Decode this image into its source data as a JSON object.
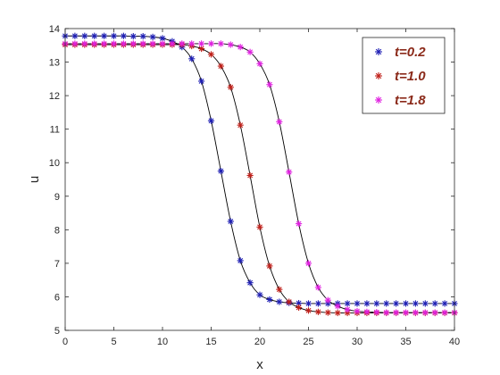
{
  "chart_data": {
    "type": "scatter",
    "title": "",
    "xlabel": "x",
    "ylabel": "u",
    "xlim": [
      0,
      40
    ],
    "ylim": [
      5,
      14
    ],
    "xticks": [
      "0",
      "5",
      "10",
      "15",
      "20",
      "25",
      "30",
      "35",
      "40"
    ],
    "yticks": [
      "5",
      "6",
      "7",
      "8",
      "9",
      "10",
      "11",
      "12",
      "13",
      "14"
    ],
    "grid": false,
    "legend_position": "top-right",
    "marker": "asterisk",
    "fit_line_color": "#000000",
    "series": [
      {
        "name": "t=0.2",
        "color": "#1f1fb4",
        "points": [
          [
            0,
            13.78
          ],
          [
            1,
            13.78
          ],
          [
            2,
            13.78
          ],
          [
            3,
            13.78
          ],
          [
            4,
            13.78
          ],
          [
            5,
            13.78
          ],
          [
            6,
            13.78
          ],
          [
            7,
            13.77
          ],
          [
            8,
            13.77
          ],
          [
            9,
            13.75
          ],
          [
            10,
            13.71
          ],
          [
            11,
            13.62
          ],
          [
            12,
            13.45
          ],
          [
            13,
            13.1
          ],
          [
            14,
            12.43
          ],
          [
            15,
            11.25
          ],
          [
            16,
            9.75
          ],
          [
            17,
            8.25
          ],
          [
            18,
            7.08
          ],
          [
            19,
            6.42
          ],
          [
            20,
            6.06
          ],
          [
            21,
            5.92
          ],
          [
            22,
            5.85
          ],
          [
            23,
            5.82
          ],
          [
            24,
            5.81
          ],
          [
            25,
            5.8
          ],
          [
            26,
            5.8
          ],
          [
            27,
            5.8
          ],
          [
            28,
            5.8
          ],
          [
            29,
            5.8
          ],
          [
            30,
            5.8
          ],
          [
            31,
            5.8
          ],
          [
            32,
            5.8
          ],
          [
            33,
            5.8
          ],
          [
            34,
            5.8
          ],
          [
            35,
            5.8
          ],
          [
            36,
            5.8
          ],
          [
            37,
            5.8
          ],
          [
            38,
            5.8
          ],
          [
            39,
            5.8
          ],
          [
            40,
            5.8
          ]
        ]
      },
      {
        "name": "t=1.0",
        "color": "#c0201a",
        "points": [
          [
            0,
            13.52
          ],
          [
            1,
            13.52
          ],
          [
            2,
            13.52
          ],
          [
            3,
            13.52
          ],
          [
            4,
            13.52
          ],
          [
            5,
            13.52
          ],
          [
            6,
            13.52
          ],
          [
            7,
            13.52
          ],
          [
            8,
            13.52
          ],
          [
            9,
            13.52
          ],
          [
            10,
            13.52
          ],
          [
            11,
            13.52
          ],
          [
            12,
            13.52
          ],
          [
            13,
            13.48
          ],
          [
            14,
            13.4
          ],
          [
            15,
            13.23
          ],
          [
            16,
            12.88
          ],
          [
            17,
            12.25
          ],
          [
            18,
            11.12
          ],
          [
            19,
            9.62
          ],
          [
            20,
            8.08
          ],
          [
            21,
            6.92
          ],
          [
            22,
            6.22
          ],
          [
            23,
            5.85
          ],
          [
            24,
            5.68
          ],
          [
            25,
            5.59
          ],
          [
            26,
            5.55
          ],
          [
            27,
            5.53
          ],
          [
            28,
            5.52
          ],
          [
            29,
            5.52
          ],
          [
            30,
            5.52
          ],
          [
            31,
            5.52
          ],
          [
            32,
            5.52
          ],
          [
            33,
            5.52
          ],
          [
            34,
            5.52
          ],
          [
            35,
            5.52
          ],
          [
            36,
            5.52
          ],
          [
            37,
            5.52
          ],
          [
            38,
            5.52
          ],
          [
            39,
            5.52
          ],
          [
            40,
            5.52
          ]
        ]
      },
      {
        "name": "t=1.8",
        "color": "#e020e0",
        "points": [
          [
            0,
            13.55
          ],
          [
            1,
            13.55
          ],
          [
            2,
            13.55
          ],
          [
            3,
            13.55
          ],
          [
            4,
            13.55
          ],
          [
            5,
            13.55
          ],
          [
            6,
            13.55
          ],
          [
            7,
            13.55
          ],
          [
            8,
            13.55
          ],
          [
            9,
            13.55
          ],
          [
            10,
            13.55
          ],
          [
            11,
            13.55
          ],
          [
            12,
            13.55
          ],
          [
            13,
            13.55
          ],
          [
            14,
            13.55
          ],
          [
            15,
            13.55
          ],
          [
            16,
            13.55
          ],
          [
            17,
            13.52
          ],
          [
            18,
            13.45
          ],
          [
            19,
            13.3
          ],
          [
            20,
            12.95
          ],
          [
            21,
            12.33
          ],
          [
            22,
            11.22
          ],
          [
            23,
            9.72
          ],
          [
            24,
            8.18
          ],
          [
            25,
            7.0
          ],
          [
            26,
            6.28
          ],
          [
            27,
            5.9
          ],
          [
            28,
            5.72
          ],
          [
            29,
            5.62
          ],
          [
            30,
            5.57
          ],
          [
            31,
            5.55
          ],
          [
            32,
            5.54
          ],
          [
            33,
            5.53
          ],
          [
            34,
            5.53
          ],
          [
            35,
            5.53
          ],
          [
            36,
            5.53
          ],
          [
            37,
            5.53
          ],
          [
            38,
            5.53
          ],
          [
            39,
            5.53
          ],
          [
            40,
            5.53
          ]
        ]
      }
    ]
  }
}
